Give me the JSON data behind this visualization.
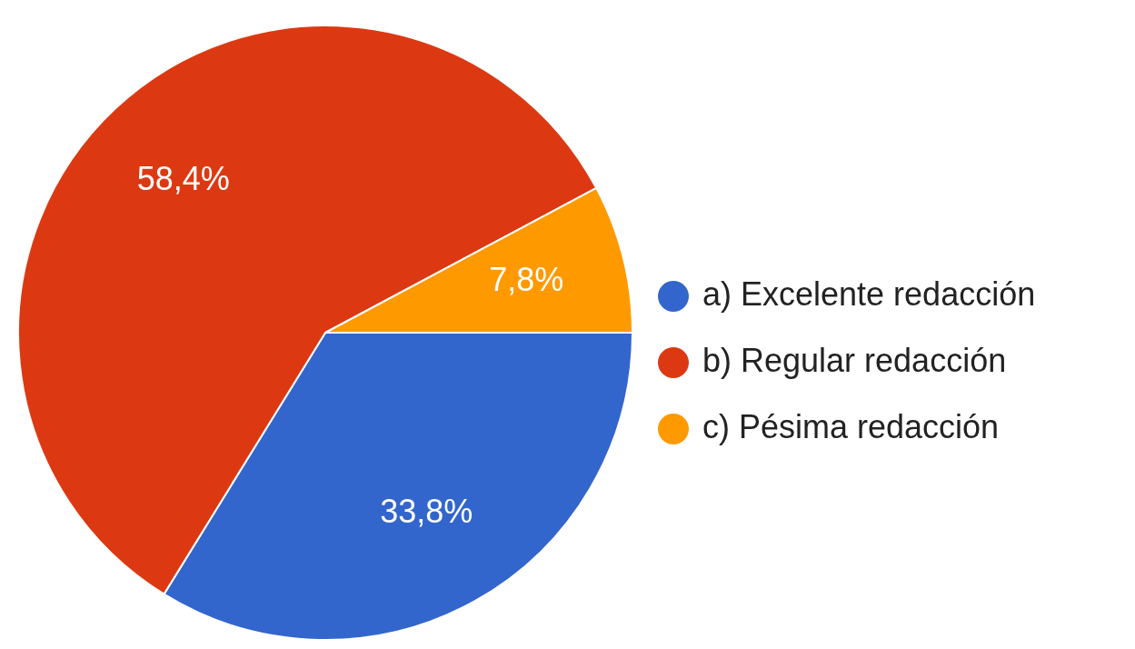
{
  "chart_data": {
    "type": "pie",
    "categories": [
      "a) Excelente redacción",
      "b) Regular redacción",
      "c) Pésima redacción"
    ],
    "values": [
      33.8,
      58.4,
      7.8
    ],
    "colors": [
      "#3366cc",
      "#dc3912",
      "#ff9900"
    ],
    "value_labels": [
      "33,8%",
      "58,4%",
      "7,8%"
    ],
    "legend": "right"
  }
}
